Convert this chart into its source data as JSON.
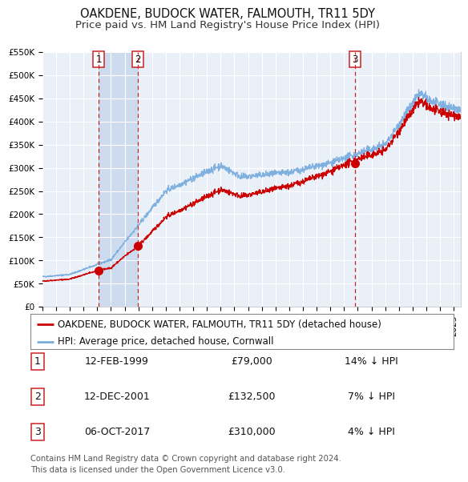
{
  "title": "OAKDENE, BUDOCK WATER, FALMOUTH, TR11 5DY",
  "subtitle": "Price paid vs. HM Land Registry's House Price Index (HPI)",
  "ylim": [
    0,
    550000
  ],
  "yticks": [
    0,
    50000,
    100000,
    150000,
    200000,
    250000,
    300000,
    350000,
    400000,
    450000,
    500000,
    550000
  ],
  "ytick_labels": [
    "£0",
    "£50K",
    "£100K",
    "£150K",
    "£200K",
    "£250K",
    "£300K",
    "£350K",
    "£400K",
    "£450K",
    "£500K",
    "£550K"
  ],
  "xlim_start": 1995.0,
  "xlim_end": 2025.5,
  "red_line_color": "#cc0000",
  "blue_line_color": "#7aadde",
  "sale_marker_color": "#cc0000",
  "sale_marker_size": 7,
  "background_color": "#ffffff",
  "plot_bg_color": "#eaf0f8",
  "grid_color": "#ffffff",
  "transaction_line_color": "#cc2222",
  "shade_color": "#c8d8ee",
  "sales": [
    {
      "label": "1",
      "date_decimal": 1999.12,
      "price": 79000,
      "date_str": "12-FEB-1999",
      "price_str": "£79,000",
      "hpi_str": "14% ↓ HPI"
    },
    {
      "label": "2",
      "date_decimal": 2001.95,
      "price": 132500,
      "date_str": "12-DEC-2001",
      "price_str": "£132,500",
      "hpi_str": "7% ↓ HPI"
    },
    {
      "label": "3",
      "date_decimal": 2017.77,
      "price": 310000,
      "date_str": "06-OCT-2017",
      "price_str": "£310,000",
      "hpi_str": "4% ↓ HPI"
    }
  ],
  "legend_label_red": "OAKDENE, BUDOCK WATER, FALMOUTH, TR11 5DY (detached house)",
  "legend_label_blue": "HPI: Average price, detached house, Cornwall",
  "footnote": "Contains HM Land Registry data © Crown copyright and database right 2024.\nThis data is licensed under the Open Government Licence v3.0.",
  "title_fontsize": 10.5,
  "subtitle_fontsize": 9.5,
  "tick_fontsize": 7.5,
  "legend_fontsize": 8.5,
  "table_fontsize": 9
}
